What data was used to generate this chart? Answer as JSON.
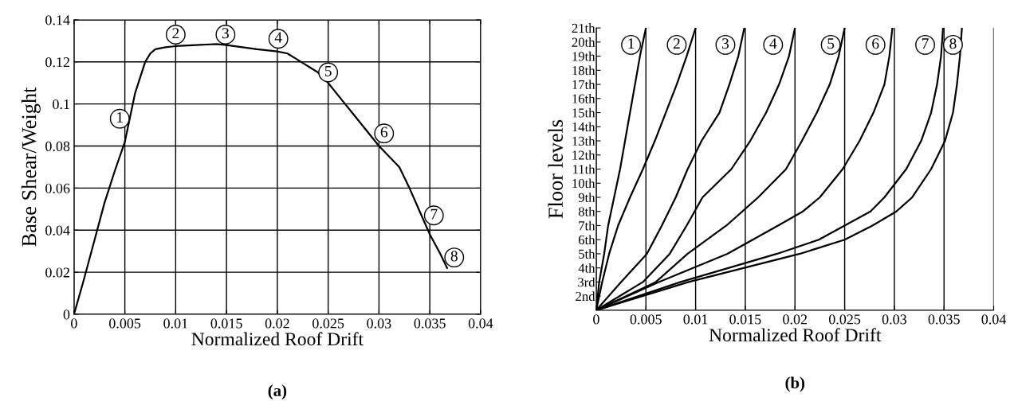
{
  "chart_data": [
    {
      "type": "line",
      "title": "(a)",
      "xlabel": "Normalized Roof Drift",
      "ylabel": "Base Shear/Weight",
      "xlim": [
        0,
        0.04
      ],
      "xticks": [
        0,
        0.005,
        0.01,
        0.015,
        0.02,
        0.025,
        0.03,
        0.035,
        0.04
      ],
      "ylim": [
        0,
        0.14
      ],
      "yticks": [
        0,
        0.02,
        0.04,
        0.06,
        0.08,
        0.1,
        0.12,
        0.14
      ],
      "grid": true,
      "series": [
        {
          "color": "#000000",
          "x": [
            0,
            0.001,
            0.002,
            0.003,
            0.004,
            0.005,
            0.006,
            0.007,
            0.0075,
            0.008,
            0.009,
            0.01,
            0.012,
            0.014,
            0.015,
            0.018,
            0.02,
            0.021,
            0.022,
            0.024,
            0.025,
            0.026,
            0.028,
            0.03,
            0.031,
            0.032,
            0.033,
            0.034,
            0.035,
            0.036,
            0.0367
          ],
          "values": [
            0,
            0.017,
            0.035,
            0.053,
            0.068,
            0.082,
            0.105,
            0.12,
            0.124,
            0.126,
            0.127,
            0.1275,
            0.128,
            0.1285,
            0.128,
            0.126,
            0.125,
            0.124,
            0.121,
            0.115,
            0.11,
            0.104,
            0.092,
            0.08,
            0.075,
            0.07,
            0.06,
            0.049,
            0.038,
            0.029,
            0.022
          ]
        }
      ],
      "annotations": [
        {
          "text": "1",
          "x": 0.0045,
          "y": 0.093
        },
        {
          "text": "2",
          "x": 0.01,
          "y": 0.133
        },
        {
          "text": "3",
          "x": 0.0149,
          "y": 0.133
        },
        {
          "text": "4",
          "x": 0.0201,
          "y": 0.131
        },
        {
          "text": "5",
          "x": 0.025,
          "y": 0.115
        },
        {
          "text": "6",
          "x": 0.0305,
          "y": 0.086
        },
        {
          "text": "7",
          "x": 0.0354,
          "y": 0.047
        },
        {
          "text": "8",
          "x": 0.0374,
          "y": 0.027
        }
      ]
    },
    {
      "type": "line",
      "title": "(b)",
      "xlabel": "Normalized Roof Drift",
      "ylabel": "Floor levels",
      "xlim": [
        0,
        0.04
      ],
      "xticks": [
        0,
        0.005,
        0.01,
        0.015,
        0.02,
        0.025,
        0.03,
        0.035,
        0.04
      ],
      "ylim": [
        1,
        21
      ],
      "yticks": [
        {
          "value": 2,
          "label": "2nd"
        },
        {
          "value": 3,
          "label": "3rd"
        },
        {
          "value": 4,
          "label": "4th"
        },
        {
          "value": 5,
          "label": "5th"
        },
        {
          "value": 6,
          "label": "6th"
        },
        {
          "value": 7,
          "label": "7th"
        },
        {
          "value": 8,
          "label": "8th"
        },
        {
          "value": 9,
          "label": "9th"
        },
        {
          "value": 10,
          "label": "10th"
        },
        {
          "value": 11,
          "label": "11th"
        },
        {
          "value": 12,
          "label": "12th"
        },
        {
          "value": 13,
          "label": "13th"
        },
        {
          "value": 14,
          "label": "14th"
        },
        {
          "value": 15,
          "label": "15th"
        },
        {
          "value": 16,
          "label": "16th"
        },
        {
          "value": 17,
          "label": "17th"
        },
        {
          "value": 18,
          "label": "18th"
        },
        {
          "value": 19,
          "label": "19th"
        },
        {
          "value": 20,
          "label": "20th"
        },
        {
          "value": 21,
          "label": "21th"
        }
      ],
      "grid": "x",
      "series": [
        {
          "color": "#000000",
          "x": [
            0,
            0.0003,
            0.0008,
            0.0012,
            0.0018,
            0.0024,
            0.0029,
            0.0034,
            0.0039,
            0.0044,
            0.005
          ],
          "values": [
            1,
            3,
            5,
            7,
            9,
            11,
            13,
            15,
            17,
            19,
            21
          ]
        },
        {
          "color": "#000000",
          "x": [
            0,
            0.0006,
            0.0013,
            0.0022,
            0.0034,
            0.0047,
            0.0059,
            0.007,
            0.0081,
            0.0091,
            0.01
          ],
          "values": [
            1,
            3,
            5,
            7,
            9,
            11,
            13,
            15,
            17,
            19,
            21
          ]
        },
        {
          "color": "#000000",
          "x": [
            0,
            0.0025,
            0.0051,
            0.0066,
            0.008,
            0.0092,
            0.0106,
            0.0124,
            0.0134,
            0.0143,
            0.0149
          ],
          "values": [
            1,
            3,
            5,
            7,
            9,
            11,
            13,
            15,
            17,
            19,
            21
          ]
        },
        {
          "color": "#000000",
          "x": [
            0,
            0.0047,
            0.0074,
            0.0091,
            0.0107,
            0.0136,
            0.0155,
            0.0171,
            0.0184,
            0.0194,
            0.02
          ],
          "values": [
            1,
            3,
            5,
            7,
            9,
            11,
            13,
            15,
            17,
            19,
            21
          ]
        },
        {
          "color": "#000000",
          "x": [
            0,
            0.006,
            0.0092,
            0.0131,
            0.0163,
            0.0191,
            0.0207,
            0.0222,
            0.0235,
            0.0244,
            0.025
          ],
          "values": [
            1,
            3,
            5,
            7,
            9,
            11,
            13,
            15,
            17,
            19,
            21
          ]
        },
        {
          "color": "#000000",
          "x": [
            0,
            0.0063,
            0.0132,
            0.0183,
            0.0208,
            0.0225,
            0.0248,
            0.0265,
            0.0279,
            0.029,
            0.0295,
            0.0298
          ],
          "values": [
            1,
            3,
            5,
            7,
            8,
            9,
            11,
            13,
            15,
            17,
            19,
            21
          ]
        },
        {
          "color": "#000000",
          "x": [
            0,
            0.0085,
            0.0182,
            0.0224,
            0.025,
            0.0276,
            0.029,
            0.0312,
            0.0327,
            0.0337,
            0.0343,
            0.0347,
            0.0349
          ],
          "values": [
            1,
            3,
            5,
            6,
            7,
            8,
            9,
            11,
            13,
            15,
            17,
            19,
            21
          ]
        },
        {
          "color": "#000000",
          "x": [
            0,
            0.0093,
            0.0205,
            0.025,
            0.0278,
            0.0302,
            0.0318,
            0.0337,
            0.0351,
            0.0359,
            0.0363,
            0.0366,
            0.0368
          ],
          "values": [
            1,
            3,
            5,
            6,
            7,
            8,
            9,
            11,
            13,
            15,
            17,
            19,
            21
          ]
        }
      ],
      "annotations": [
        {
          "text": "1",
          "x": 0.0035,
          "y": 19.8
        },
        {
          "text": "2",
          "x": 0.0081,
          "y": 19.8
        },
        {
          "text": "3",
          "x": 0.013,
          "y": 19.8
        },
        {
          "text": "4",
          "x": 0.0178,
          "y": 19.8
        },
        {
          "text": "5",
          "x": 0.0236,
          "y": 19.8
        },
        {
          "text": "6",
          "x": 0.0281,
          "y": 19.8
        },
        {
          "text": "7",
          "x": 0.0331,
          "y": 19.8
        },
        {
          "text": "8",
          "x": 0.0359,
          "y": 19.8
        }
      ]
    }
  ]
}
